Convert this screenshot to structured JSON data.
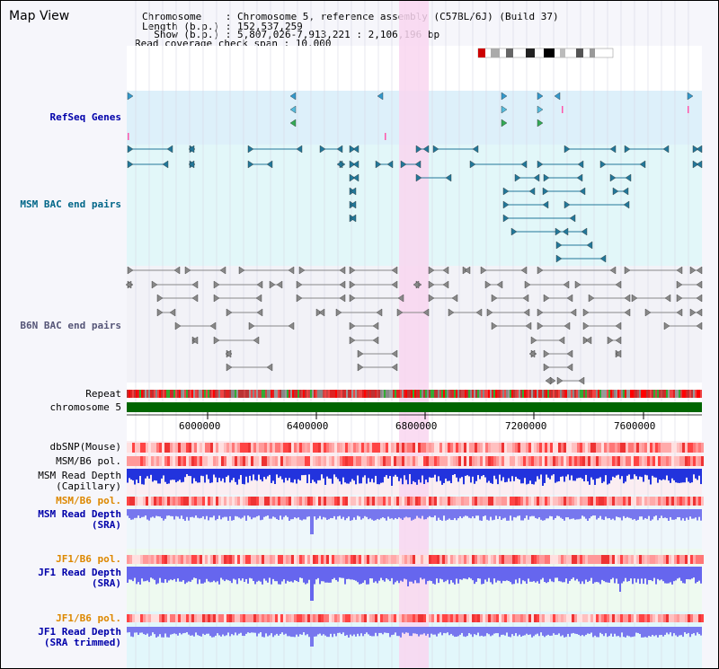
{
  "header": {
    "title": "Map View",
    "info_lines": [
      "Chromosome    : Chromosome 5, reference assembly (C57BL/6J) (Build 37)",
      "Length (b.p.) : 152,537,259",
      "  Show (b.p.) : 5,807,026-7,913,221 : 2,106,196 bp",
      "Read coverage check span : 10,000"
    ]
  },
  "tracks": {
    "refseq": "RefSeq Genes",
    "msm_bac": "MSM BAC end pairs",
    "b6n_bac": "B6N BAC end pairs",
    "repeat": "Repeat",
    "chromosome": "chromosome 5",
    "dbsnp": "dbSNP(Mouse)",
    "msm_b6_pol_1": "MSM/B6 pol.",
    "msm_depth_cap_1": "MSM Read Depth",
    "msm_depth_cap_2": "(Capillary)",
    "msm_b6_pol_2": "MSM/B6 pol.",
    "msm_depth_sra_1": "MSM Read Depth",
    "msm_depth_sra_2": "(SRA)",
    "jf1_b6_pol_1": "JF1/B6 pol.",
    "jf1_depth_sra_1": "JF1 Read Depth",
    "jf1_depth_sra_2": "(SRA)",
    "jf1_b6_pol_2": "JF1/B6 pol.",
    "jf1_depth_trim_1": "JF1 Read Depth",
    "jf1_depth_trim_2": "(SRA trimmed)"
  },
  "axis": {
    "ticks": [
      "6000000",
      "6400000",
      "6800000",
      "7200000",
      "7600000"
    ]
  },
  "colors": {
    "highlight": "#f9d6f0",
    "refseq_bg": "#ddf0fa",
    "msm_bg": "#e2f7f9",
    "b6n_bg": "#f2f2f7",
    "chromosome": "#006600",
    "label_blue": "#0000aa",
    "label_teal": "#006688",
    "label_orange": "#dd8800"
  }
}
